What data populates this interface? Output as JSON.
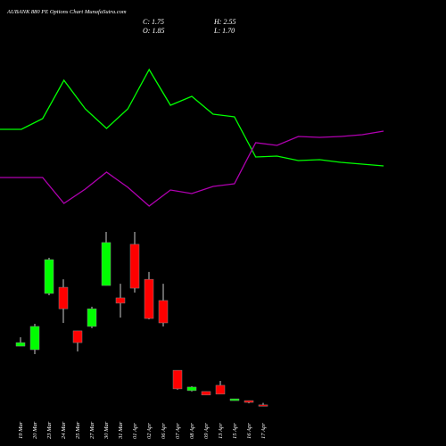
{
  "chart_data": [
    {
      "type": "candlestick",
      "title": "AUBANK 880 PE Options Chart MunafaSutra.com",
      "info": [
        "C: 1.75",
        "H: 2.55",
        "O: 1.85",
        "L: 1.70"
      ],
      "categories": [
        "19 Mar",
        "20 Mar",
        "23 Mar",
        "24 Mar",
        "25 Mar",
        "27 Mar",
        "30 Mar",
        "31 Mar",
        "01 Apr",
        "02 Apr",
        "06 Apr",
        "07 Apr",
        "08 Apr",
        "09 Apr",
        "13 Apr",
        "15 Apr",
        "16 Apr",
        "17 Apr"
      ],
      "open": [
        21.8,
        20.6,
        39.7,
        41.8,
        27.0,
        28.5,
        42.4,
        38.2,
        56.4,
        44.5,
        37.3,
        13.6,
        6.7,
        6.4,
        8.5,
        3.3,
        3.3,
        1.85
      ],
      "high": [
        24.8,
        29.4,
        51.8,
        44.5,
        27.0,
        35.2,
        60.6,
        43.0,
        60.6,
        47.0,
        43.0,
        13.6,
        8.2,
        6.4,
        10.0,
        3.9,
        3.3,
        2.55
      ],
      "low": [
        21.8,
        19.1,
        39.1,
        29.7,
        20.0,
        27.9,
        42.4,
        31.5,
        40.0,
        30.9,
        28.5,
        7.0,
        6.4,
        5.2,
        5.5,
        3.3,
        2.4,
        1.7
      ],
      "close": [
        23.0,
        28.5,
        51.2,
        34.5,
        23.0,
        34.5,
        57.0,
        36.4,
        41.5,
        31.2,
        29.7,
        7.3,
        7.9,
        5.2,
        5.5,
        3.9,
        2.7,
        1.75
      ],
      "up_color": "#00ff00",
      "down_color": "#ff0000",
      "ylim": [
        0,
        60
      ]
    },
    {
      "type": "line",
      "series": [
        {
          "color": "#00ff00",
          "values": [
            105,
            105,
            117,
            160,
            128,
            106,
            128,
            172,
            132,
            142,
            122,
            119,
            74,
            75,
            70,
            71,
            68,
            66,
            64
          ]
        },
        {
          "color": "#b000b0",
          "values": [
            51,
            51,
            51,
            22,
            38,
            57,
            40,
            19,
            37,
            33,
            41,
            44,
            90,
            87,
            97,
            96,
            97,
            99,
            103
          ]
        }
      ],
      "ylim": [
        0,
        200
      ]
    }
  ]
}
